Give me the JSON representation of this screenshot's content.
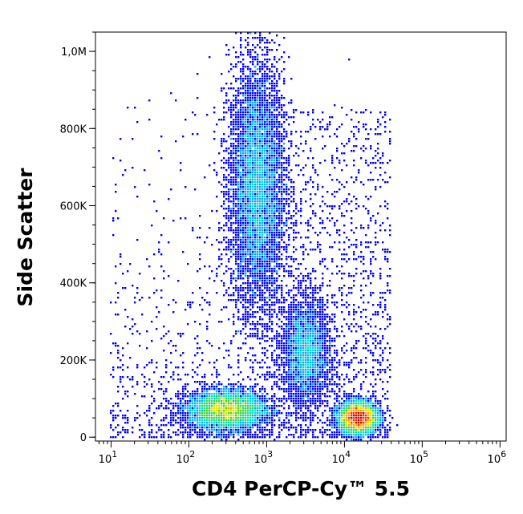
{
  "chart_data": {
    "type": "scatter",
    "title": "",
    "xlabel": "CD4 PerCP-Cy™ 5.5",
    "ylabel": "Side Scatter",
    "x_scale": "log",
    "xlim": [
      6.3,
      1200000
    ],
    "ylim": [
      -10000,
      1050000
    ],
    "x_ticks": [
      {
        "value": 10,
        "base": "10",
        "exp": "1"
      },
      {
        "value": 100,
        "base": "10",
        "exp": "2"
      },
      {
        "value": 1000,
        "base": "10",
        "exp": "3"
      },
      {
        "value": 10000,
        "base": "10",
        "exp": "4"
      },
      {
        "value": 100000,
        "base": "10",
        "exp": "5"
      },
      {
        "value": 1000000,
        "base": "10",
        "exp": "6"
      }
    ],
    "y_ticks": [
      {
        "value": 0,
        "label": "0"
      },
      {
        "value": 200000,
        "label": "200K"
      },
      {
        "value": 400000,
        "label": "400K"
      },
      {
        "value": 600000,
        "label": "600K"
      },
      {
        "value": 800000,
        "label": "800K"
      },
      {
        "value": 1000000,
        "label": "1,0M"
      }
    ],
    "populations": [
      {
        "x_center": 750,
        "x_spread_decades": 0.18,
        "y_center": 650000,
        "y_spread": 160000,
        "density": "high"
      },
      {
        "x_center": 300,
        "x_spread_decades": 0.25,
        "y_center": 70000,
        "y_spread": 25000,
        "density": "high"
      },
      {
        "x_center": 3200,
        "x_spread_decades": 0.15,
        "y_center": 220000,
        "y_spread": 70000,
        "density": "medium"
      },
      {
        "x_center": 15000,
        "x_spread_decades": 0.12,
        "y_center": 50000,
        "y_spread": 20000,
        "density": "high"
      }
    ],
    "colormap": [
      "#00008b",
      "#0000ff",
      "#00aaff",
      "#00e5c0",
      "#3fd13f",
      "#d8e600",
      "#ffa500",
      "#ff2a00",
      "#c00000"
    ],
    "grid": false,
    "legend": "none"
  }
}
